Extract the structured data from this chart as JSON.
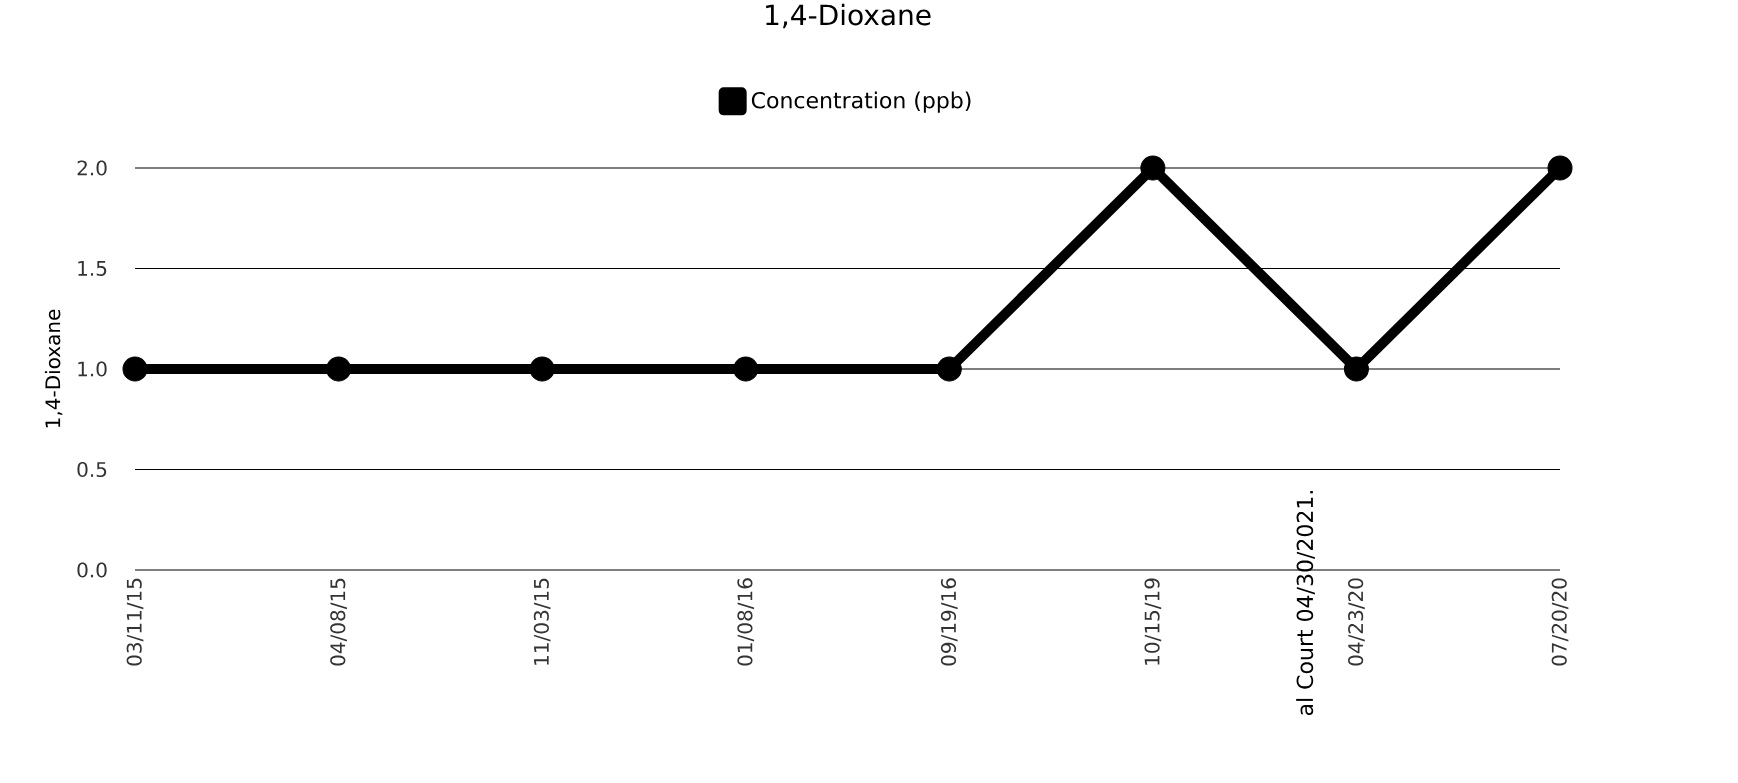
{
  "chart_data": {
    "type": "line",
    "title": "1,4-Dioxane",
    "ylabel": "1,4-Dioxane",
    "categories": [
      "03/11/15",
      "04/08/15",
      "11/03/15",
      "01/08/16",
      "09/19/16",
      "10/15/19",
      "04/23/20",
      "07/20/20"
    ],
    "series": [
      {
        "name": "Concentration (ppb)",
        "color": "#000000",
        "values": [
          1.0,
          1.0,
          1.0,
          1.0,
          1.0,
          2.0,
          1.0,
          2.0
        ]
      }
    ],
    "ylim": [
      0,
      2.0
    ],
    "yticks": [
      {
        "value": 0,
        "label": "0.0"
      },
      {
        "value": 0.5,
        "label": "0.5"
      },
      {
        "value": 1.0,
        "label": "1.0"
      },
      {
        "value": 1.5,
        "label": "1.5"
      },
      {
        "value": 2.0,
        "label": "2.0"
      }
    ],
    "grid": "y",
    "legend": "top",
    "marker": "circle",
    "annotations": [
      "al Court 04/30/2021."
    ]
  }
}
